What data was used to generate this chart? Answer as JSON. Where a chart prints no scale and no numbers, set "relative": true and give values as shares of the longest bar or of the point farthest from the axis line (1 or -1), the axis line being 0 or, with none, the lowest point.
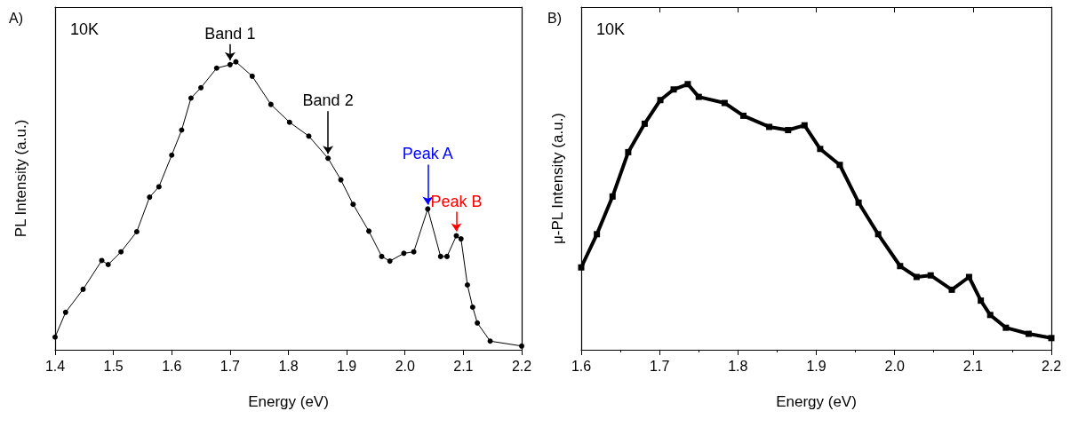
{
  "chart_data": [
    {
      "type": "line",
      "xlabel": "Energy (eV)",
      "ylabel": "PL Intensity (a.u.)",
      "relative": true,
      "xlim": [
        1.4,
        2.2
      ],
      "xticks": [
        1.4,
        1.5,
        1.6,
        1.7,
        1.8,
        1.9,
        {
          "value": 2,
          "label": "2.0"
        },
        2.1,
        2.2
      ],
      "marker": "circle",
      "line_style": "solid",
      "annotations": [
        "A)",
        "10K",
        {
          "text": "Band 1",
          "x": 1.7,
          "y": 0.99
        },
        {
          "text": "Band 2",
          "x": 1.868,
          "y": 0.665
        },
        {
          "text": "Peak A",
          "x": 2.039,
          "y": 0.489
        },
        {
          "text": "Peak B",
          "x": 2.088,
          "y": 0.396
        }
      ],
      "series": [
        {
          "color": "#000000",
          "x": [
            1.4,
            1.418,
            1.448,
            1.48,
            1.491,
            1.513,
            1.54,
            1.562,
            1.578,
            1.6,
            1.617,
            1.633,
            1.65,
            1.677,
            1.7,
            1.71,
            1.738,
            1.77,
            1.802,
            1.835,
            1.868,
            1.89,
            1.911,
            1.938,
            1.96,
            1.974,
            1.998,
            2.015,
            2.039,
            2.061,
            2.072,
            2.088,
            2.096,
            2.107,
            2.116,
            2.124,
            2.146,
            2.2
          ],
          "values": [
            0.044,
            0.13,
            0.21,
            0.31,
            0.296,
            0.34,
            0.41,
            0.53,
            0.566,
            0.676,
            0.763,
            0.874,
            0.91,
            0.978,
            0.99,
            1.0,
            0.95,
            0.852,
            0.79,
            0.742,
            0.665,
            0.59,
            0.505,
            0.412,
            0.324,
            0.308,
            0.335,
            0.34,
            0.489,
            0.324,
            0.324,
            0.396,
            0.385,
            0.225,
            0.148,
            0.093,
            0.03,
            0.013
          ]
        }
      ]
    },
    {
      "type": "line",
      "xlabel": "Energy (eV)",
      "ylabel": "μ-PL Intensity (a.u.)",
      "relative": true,
      "xlim": [
        1.6,
        2.2
      ],
      "xticks": [
        1.6,
        1.7,
        1.8,
        1.9,
        {
          "value": 2,
          "label": "2.0"
        },
        2.1,
        2.2
      ],
      "marker": "square",
      "line_style": "solid",
      "annotations": [
        "B)",
        "10K"
      ],
      "series": [
        {
          "color": "#000000",
          "x": [
            1.6,
            1.62,
            1.64,
            1.66,
            1.681,
            1.701,
            1.718,
            1.736,
            1.75,
            1.783,
            1.807,
            1.84,
            1.864,
            1.885,
            1.905,
            1.93,
            1.954,
            1.979,
            2.007,
            2.028,
            2.046,
            2.073,
            2.095,
            2.11,
            2.122,
            2.142,
            2.171,
            2.2
          ],
          "values": [
            0.31,
            0.435,
            0.577,
            0.744,
            0.851,
            0.94,
            0.98,
            1.0,
            0.952,
            0.929,
            0.881,
            0.839,
            0.827,
            0.845,
            0.756,
            0.696,
            0.554,
            0.435,
            0.315,
            0.274,
            0.28,
            0.226,
            0.274,
            0.185,
            0.131,
            0.083,
            0.06,
            0.044
          ]
        }
      ]
    }
  ]
}
